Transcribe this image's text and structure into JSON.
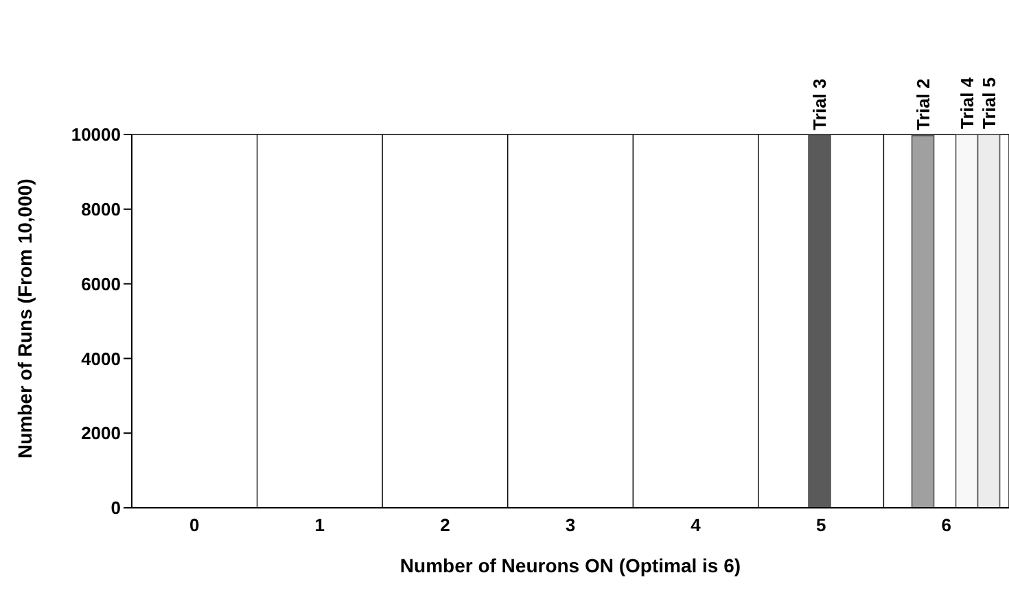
{
  "chart_data": {
    "type": "bar",
    "xlabel": "Number of Neurons ON (Optimal is 6)",
    "ylabel": "Number of Runs (From 10,000)",
    "categories": [
      "0",
      "1",
      "2",
      "3",
      "4",
      "5",
      "6"
    ],
    "series": [
      {
        "color": "#333333",
        "values": [
          0,
          0,
          0,
          0,
          0,
          0,
          0
        ]
      },
      {
        "name": "Trial 2",
        "color": "#a0a0a0",
        "values": [
          0,
          0,
          0,
          0,
          0,
          null,
          9970
        ]
      },
      {
        "name": "Trial 3",
        "color": "#5a5a5a",
        "values": [
          0,
          0,
          0,
          0,
          0,
          9970,
          null
        ]
      },
      {
        "name": "Trial 4",
        "color": "#f8f8f8",
        "values": [
          0,
          0,
          0,
          0,
          0,
          0,
          10000
        ]
      },
      {
        "name": "Trial 5",
        "color": "#ececec",
        "values": [
          0,
          0,
          0,
          0,
          0,
          0,
          10000
        ]
      }
    ],
    "ylim": [
      0,
      10000
    ],
    "yticks": [
      0,
      2000,
      4000,
      6000,
      8000,
      10000
    ],
    "grid": true,
    "legend": false
  }
}
